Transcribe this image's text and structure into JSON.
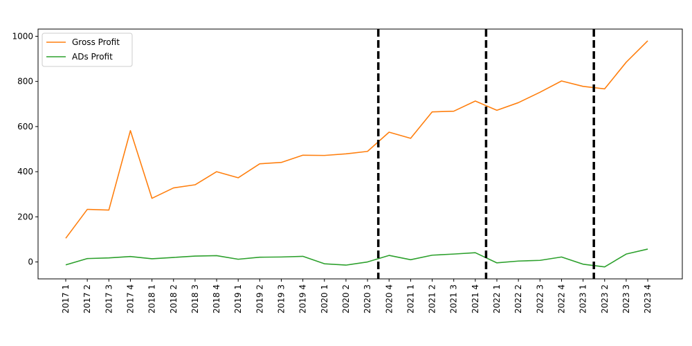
{
  "chart_data": {
    "type": "line",
    "title": "",
    "xlabel": "",
    "ylabel": "",
    "categories": [
      "2017 1",
      "2017 2",
      "2017 3",
      "2017 4",
      "2018 1",
      "2018 2",
      "2018 3",
      "2018 4",
      "2019 1",
      "2019 2",
      "2019 3",
      "2019 4",
      "2020 1",
      "2020 2",
      "2020 3",
      "2020 4",
      "2021 1",
      "2021 2",
      "2021 3",
      "2021 4",
      "2022 1",
      "2022 2",
      "2022 3",
      "2022 4",
      "2023 1",
      "2023 2",
      "2023 3",
      "2023 4"
    ],
    "series": [
      {
        "name": "Gross Profit",
        "color": "#ff7f0e",
        "values": [
          105,
          233,
          230,
          582,
          282,
          328,
          342,
          400,
          373,
          435,
          441,
          473,
          472,
          479,
          490,
          575,
          548,
          665,
          668,
          713,
          672,
          706,
          752,
          802,
          778,
          767,
          885,
          980
        ]
      },
      {
        "name": "ADs Profit",
        "color": "#2ca02c",
        "values": [
          -13,
          15,
          18,
          24,
          14,
          20,
          26,
          28,
          12,
          21,
          22,
          25,
          -8,
          -14,
          0,
          29,
          10,
          30,
          35,
          41,
          -4,
          4,
          7,
          22,
          -10,
          -22,
          35,
          57
        ]
      }
    ],
    "vertical_markers": [
      {
        "position_between": [
          "2020 3",
          "2020 4"
        ],
        "style": "dashed",
        "color": "#000000"
      },
      {
        "position_between": [
          "2021 4",
          "2022 1"
        ],
        "style": "dashed",
        "color": "#000000"
      },
      {
        "position_between": [
          "2023 1",
          "2023 2"
        ],
        "style": "dashed",
        "color": "#000000"
      }
    ],
    "yticks": [
      0,
      200,
      400,
      600,
      800,
      1000
    ],
    "ylim": [
      -75,
      1032
    ],
    "legend_placement": "top-left",
    "grid": false
  }
}
